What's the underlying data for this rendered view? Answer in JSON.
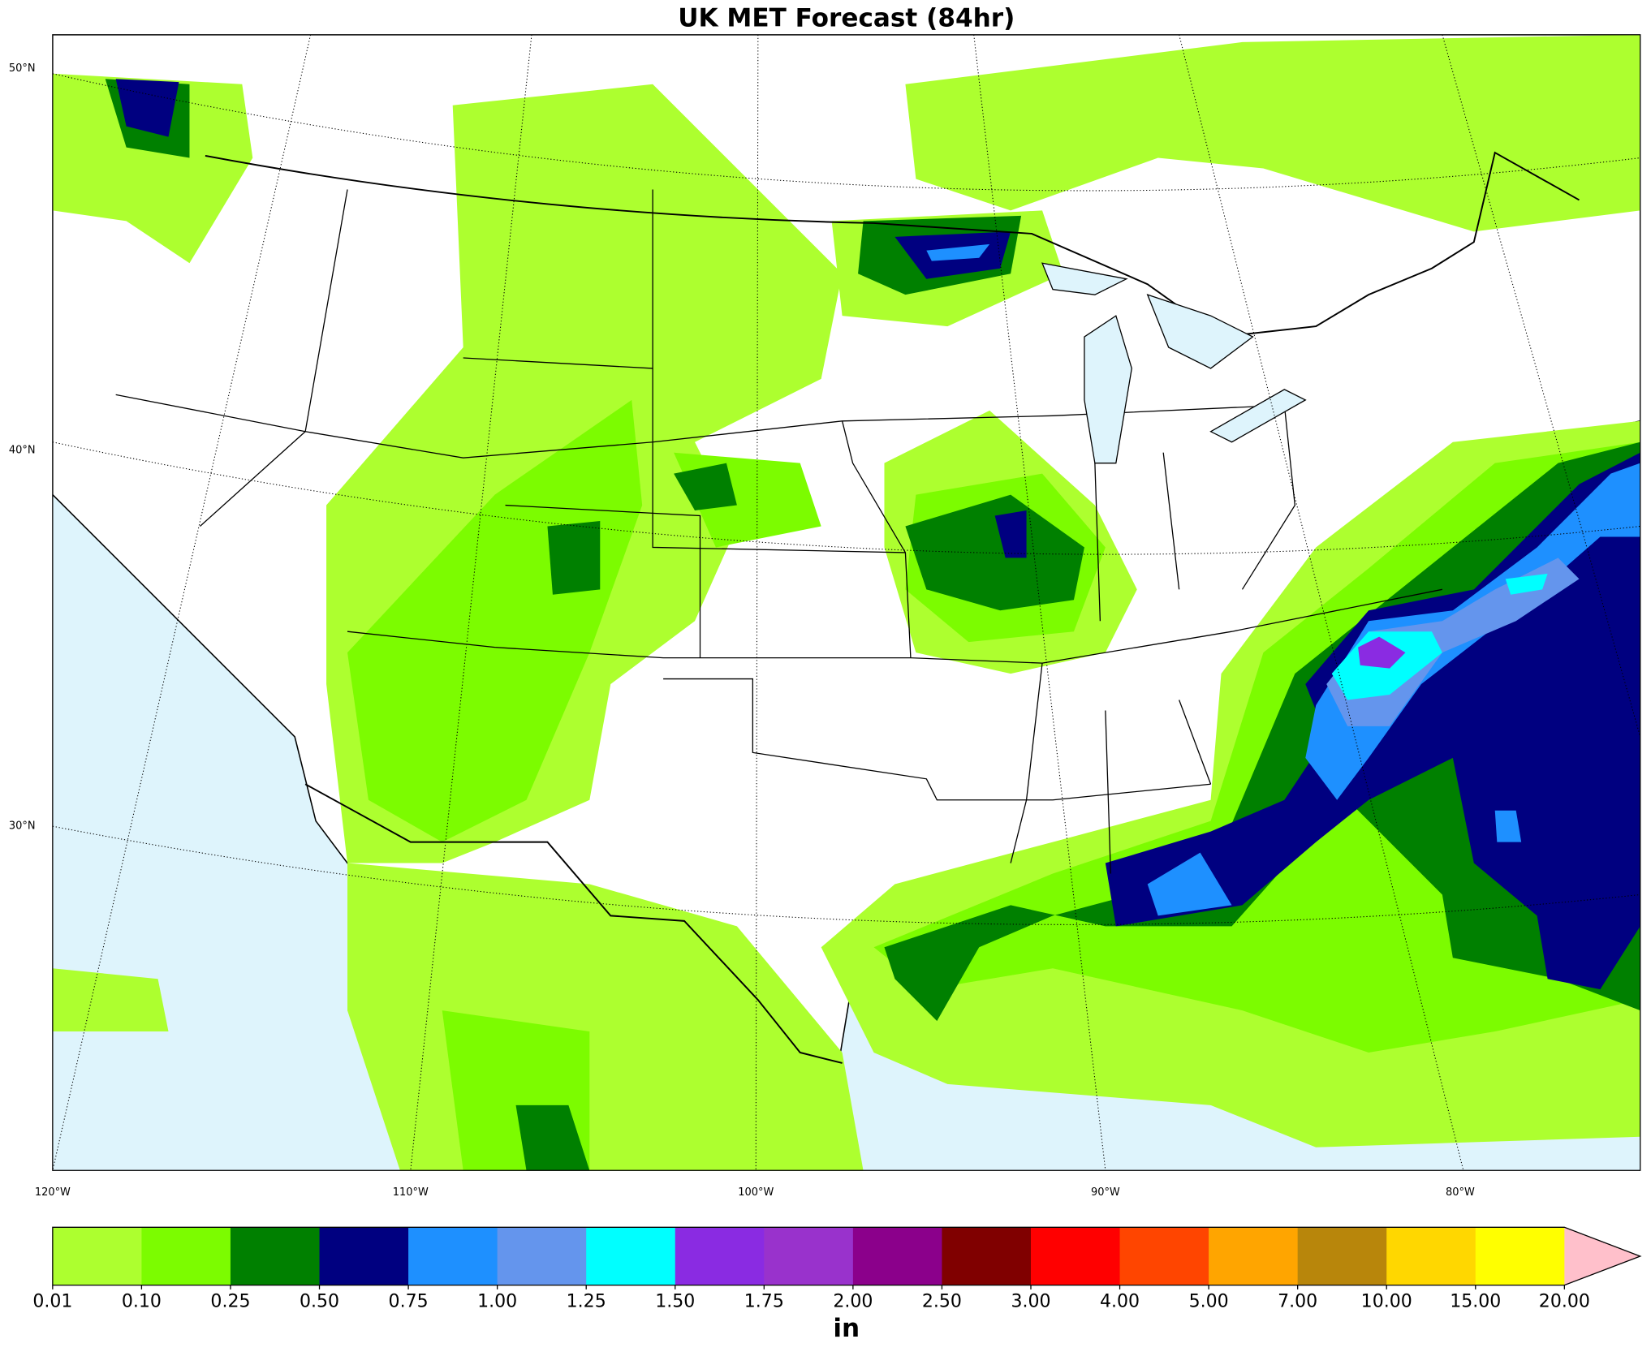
{
  "title": "UK MET Forecast (84hr)",
  "map": {
    "lat_labels": [
      "50°N",
      "40°N",
      "30°N"
    ],
    "lon_labels": [
      "120°W",
      "110°W",
      "100°W",
      "90°W",
      "80°W"
    ]
  },
  "colorbar": {
    "ticks": [
      "0.01",
      "0.10",
      "0.25",
      "0.50",
      "0.75",
      "1.00",
      "1.25",
      "1.50",
      "1.75",
      "2.00",
      "2.50",
      "3.00",
      "4.00",
      "5.00",
      "7.00",
      "10.00",
      "15.00",
      "20.00"
    ],
    "colors": [
      "#adff2f",
      "#7cfc00",
      "#008000",
      "#000080",
      "#1e90ff",
      "#6495ed",
      "#00ffff",
      "#8a2be2",
      "#9932cc",
      "#8b008b",
      "#800000",
      "#ff0000",
      "#ff4500",
      "#ffa500",
      "#b8860b",
      "#ffd700",
      "#ffff00"
    ],
    "extend_color": "#ffc0cb",
    "unit": "in"
  }
}
